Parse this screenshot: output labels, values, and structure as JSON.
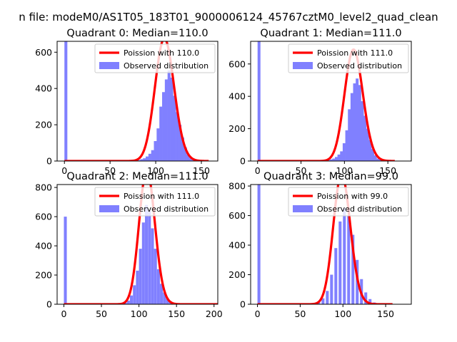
{
  "figure": {
    "suptitle": "n file: modeM0/AS1T05_183T01_9000006124_45767cztM0_level2_quad_clean"
  },
  "colors": {
    "histogram": "#8080ff",
    "poisson": "#ff0000",
    "axes": "#000000",
    "background": "#ffffff"
  },
  "chart_data": [
    {
      "type": "histogram",
      "title": "Quadrant 0: Median=110.0",
      "median": 110.0,
      "xlim": [
        -8,
        168
      ],
      "ylim": [
        0,
        660
      ],
      "xticks": [
        0,
        50,
        100,
        150
      ],
      "yticks": [
        0,
        200,
        400,
        600
      ],
      "legend": {
        "position": "upper right",
        "entries": [
          "Poission with 110.0",
          "Observed distribution"
        ]
      },
      "series": [
        {
          "name": "Observed distribution",
          "bin_width": 3.2,
          "bins": [
            [
              0,
              660
            ],
            [
              80,
              5
            ],
            [
              83,
              10
            ],
            [
              86,
              15
            ],
            [
              89,
              25
            ],
            [
              92,
              40
            ],
            [
              95,
              60
            ],
            [
              98,
              110
            ],
            [
              101,
              180
            ],
            [
              104,
              300
            ],
            [
              107,
              380
            ],
            [
              110,
              450
            ],
            [
              113,
              500
            ],
            [
              116,
              460
            ],
            [
              119,
              360
            ],
            [
              122,
              270
            ],
            [
              125,
              200
            ],
            [
              128,
              130
            ],
            [
              131,
              75
            ],
            [
              134,
              35
            ],
            [
              137,
              15
            ],
            [
              140,
              8
            ],
            [
              143,
              4
            ],
            [
              146,
              2
            ],
            [
              149,
              1
            ]
          ]
        },
        {
          "name": "Poission with 110.0",
          "mean": 110.0
        }
      ]
    },
    {
      "type": "histogram",
      "title": "Quadrant 1: Median=111.0",
      "median": 111.0,
      "xlim": [
        -8,
        177
      ],
      "ylim": [
        0,
        740
      ],
      "xticks": [
        0,
        50,
        100,
        150
      ],
      "yticks": [
        0,
        200,
        400,
        600
      ],
      "legend": {
        "position": "upper right",
        "entries": [
          "Poission with 111.0",
          "Observed distribution"
        ]
      },
      "series": [
        {
          "name": "Observed distribution",
          "bin_width": 3.3,
          "bins": [
            [
              0,
              740
            ],
            [
              80,
              5
            ],
            [
              83,
              10
            ],
            [
              86,
              15
            ],
            [
              89,
              25
            ],
            [
              92,
              40
            ],
            [
              95,
              60
            ],
            [
              98,
              110
            ],
            [
              101,
              190
            ],
            [
              104,
              320
            ],
            [
              107,
              420
            ],
            [
              110,
              480
            ],
            [
              113,
              510
            ],
            [
              116,
              470
            ],
            [
              119,
              370
            ],
            [
              122,
              280
            ],
            [
              125,
              200
            ],
            [
              128,
              130
            ],
            [
              131,
              75
            ],
            [
              134,
              35
            ],
            [
              137,
              15
            ],
            [
              140,
              8
            ],
            [
              143,
              4
            ],
            [
              146,
              2
            ],
            [
              149,
              1
            ]
          ]
        },
        {
          "name": "Poission with 111.0",
          "mean": 111.0
        }
      ]
    },
    {
      "type": "histogram",
      "title": "Quadrant 2: Median=111.0",
      "median": 111.0,
      "xlim": [
        -9,
        205
      ],
      "ylim": [
        0,
        820
      ],
      "xticks": [
        0,
        50,
        100,
        150,
        200
      ],
      "yticks": [
        0,
        200,
        400,
        600,
        800
      ],
      "legend": {
        "position": "upper right",
        "entries": [
          "Poission with 111.0",
          "Observed distribution"
        ]
      },
      "series": [
        {
          "name": "Observed distribution",
          "bin_width": 3.9,
          "bins": [
            [
              0,
              600
            ],
            [
              80,
              10
            ],
            [
              84,
              25
            ],
            [
              88,
              60
            ],
            [
              92,
              130
            ],
            [
              96,
              230
            ],
            [
              100,
              380
            ],
            [
              104,
              560
            ],
            [
              108,
              680
            ],
            [
              112,
              640
            ],
            [
              116,
              520
            ],
            [
              120,
              380
            ],
            [
              124,
              240
            ],
            [
              128,
              140
            ],
            [
              132,
              80
            ],
            [
              136,
              40
            ],
            [
              140,
              20
            ],
            [
              144,
              10
            ],
            [
              148,
              5
            ],
            [
              152,
              2
            ]
          ]
        },
        {
          "name": "Poission with 111.0",
          "mean": 111.0
        }
      ]
    },
    {
      "type": "histogram",
      "title": "Quadrant 3: Median=99.0",
      "median": 99.0,
      "xlim": [
        -8,
        180
      ],
      "ylim": [
        0,
        810
      ],
      "xticks": [
        0,
        50,
        100,
        150
      ],
      "yticks": [
        0,
        200,
        400,
        600,
        800
      ],
      "legend": {
        "position": "upper right",
        "entries": [
          "Poission with 99.0",
          "Observed distribution"
        ]
      },
      "series": [
        {
          "name": "Observed distribution",
          "bin_width": 3.4,
          "bins": [
            [
              0,
              810
            ],
            [
              65,
              5
            ],
            [
              70,
              15
            ],
            [
              75,
              40
            ],
            [
              80,
              90
            ],
            [
              85,
              200
            ],
            [
              90,
              380
            ],
            [
              95,
              560
            ],
            [
              100,
              650
            ],
            [
              105,
              600
            ],
            [
              110,
              470
            ],
            [
              115,
              300
            ],
            [
              120,
              170
            ],
            [
              125,
              80
            ],
            [
              130,
              35
            ],
            [
              135,
              12
            ],
            [
              140,
              4
            ],
            [
              145,
              1
            ]
          ]
        },
        {
          "name": "Poission with 99.0",
          "mean": 99.0
        }
      ]
    }
  ]
}
